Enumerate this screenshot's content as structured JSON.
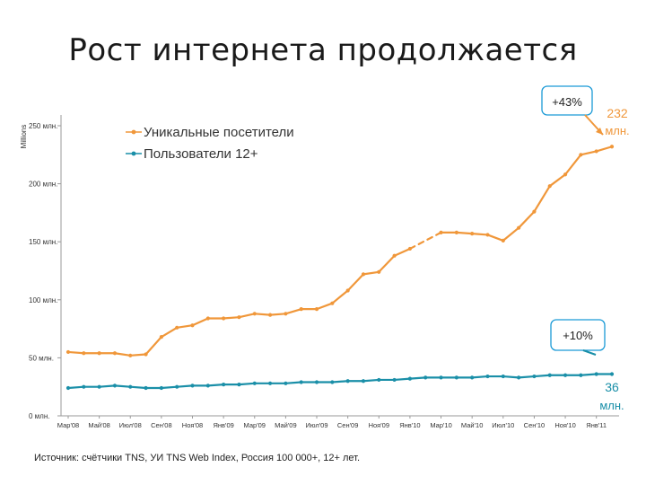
{
  "page": {
    "title": "Рост интернета продолжается",
    "source": "Источник: счётчики TNS, УИ TNS Web Index, Россия 100 000+, 12+ лет."
  },
  "colors": {
    "orange": "#f0973a",
    "blue": "#1a8fa8",
    "callout_border": "#1a9ad6"
  },
  "annotations": {
    "growth_orange": "+43%",
    "value_orange_1": "232",
    "value_orange_2": "млн.",
    "growth_blue": "+10%",
    "value_blue_1": "36",
    "value_blue_2": "млн."
  },
  "chart_data": {
    "type": "line",
    "ylabel": "Millions",
    "ylim": [
      0,
      250
    ],
    "y_ticks": [
      0,
      50,
      100,
      150,
      200,
      250
    ],
    "y_tick_labels": [
      "0 млн.",
      "50 млн.",
      "100 млн.",
      "150 млн.",
      "200 млн.",
      "250 млн."
    ],
    "grid": false,
    "legend_position": "top-left",
    "x_tick_labels": [
      "Мар'08",
      "Май'08",
      "Июл'08",
      "Сен'08",
      "Ноя'08",
      "Янв'09",
      "Мар'09",
      "Май'09",
      "Июл'09",
      "Сен'09",
      "Ноя'09",
      "Янв'10",
      "Мар'10",
      "Май'10",
      "Июл'10",
      "Сен'10",
      "Ноя'10",
      "Янв'11"
    ],
    "x_count": 36,
    "series": [
      {
        "name": "Уникальные посетители",
        "color": "#f0973a",
        "values": [
          55,
          54,
          54,
          54,
          52,
          53,
          68,
          76,
          78,
          84,
          84,
          85,
          88,
          87,
          88,
          92,
          92,
          97,
          108,
          122,
          124,
          138,
          144,
          null,
          158,
          158,
          157,
          156,
          151,
          162,
          176,
          198,
          208,
          225,
          228,
          232
        ],
        "gap_after": [
          22
        ]
      },
      {
        "name": "Пользователи 12+",
        "color": "#1a8fa8",
        "values": [
          24,
          25,
          25,
          26,
          25,
          24,
          24,
          25,
          26,
          26,
          27,
          27,
          28,
          28,
          28,
          29,
          29,
          29,
          30,
          30,
          31,
          31,
          32,
          33,
          33,
          33,
          33,
          34,
          34,
          33,
          34,
          35,
          35,
          35,
          36,
          36
        ]
      }
    ]
  }
}
